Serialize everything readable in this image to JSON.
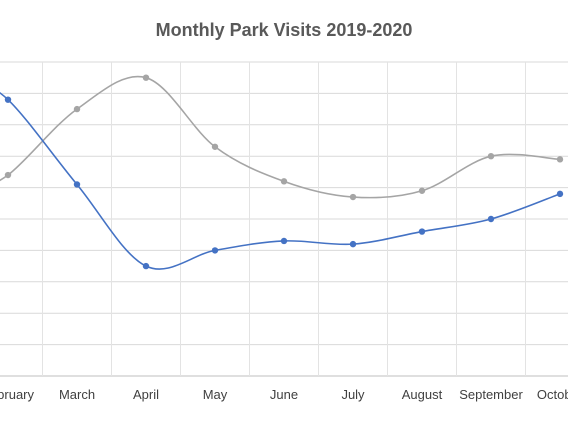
{
  "chart_data": {
    "type": "line",
    "title": "Monthly Park Visits 2019-2020",
    "categories": [
      "February",
      "March",
      "April",
      "May",
      "June",
      "July",
      "August",
      "September",
      "October"
    ],
    "series": [
      {
        "color": "#4472C4",
        "values": [
          8.8,
          6.1,
          3.5,
          4.0,
          4.3,
          4.2,
          4.6,
          5.0,
          5.8
        ]
      },
      {
        "color": "#A5A5A5",
        "values": [
          6.4,
          8.5,
          9.5,
          7.3,
          6.2,
          5.7,
          5.9,
          7.0,
          6.9
        ]
      }
    ],
    "ylim": [
      0,
      10
    ],
    "grid": true,
    "legend": "none"
  }
}
